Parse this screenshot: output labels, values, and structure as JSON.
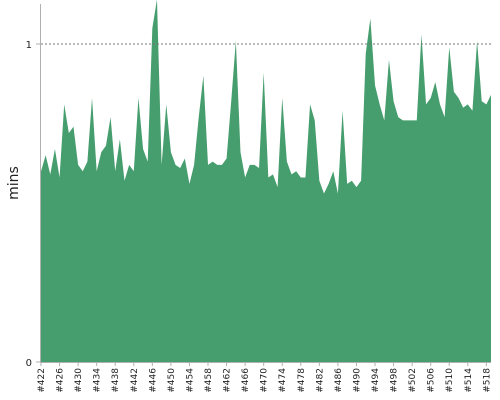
{
  "chart_data": {
    "type": "area",
    "ylabel": "mins",
    "xlabel": "",
    "ylim": [
      0,
      1.13
    ],
    "yticks": [
      {
        "value": 0,
        "label": "0"
      },
      {
        "value": 1,
        "label": "1"
      }
    ],
    "reference_line": {
      "value": 1,
      "style": "dotted"
    },
    "grid": false,
    "legend": "none",
    "fill_color": "#469d6d",
    "x_start": 422,
    "x_end": 519,
    "x_tick_labels": [
      "#422",
      "#426",
      "#430",
      "#434",
      "#438",
      "#442",
      "#446",
      "#450",
      "#454",
      "#458",
      "#462",
      "#466",
      "#470",
      "#474",
      "#478",
      "#482",
      "#486",
      "#490",
      "#494",
      "#498",
      "#502",
      "#506",
      "#510",
      "#514",
      "#518"
    ],
    "values": [
      0.6,
      0.65,
      0.59,
      0.67,
      0.58,
      0.81,
      0.72,
      0.74,
      0.62,
      0.6,
      0.63,
      0.83,
      0.6,
      0.66,
      0.68,
      0.77,
      0.6,
      0.7,
      0.57,
      0.62,
      0.6,
      0.83,
      0.67,
      0.63,
      1.05,
      1.14,
      0.62,
      0.81,
      0.66,
      0.62,
      0.61,
      0.64,
      0.56,
      0.62,
      0.77,
      0.9,
      0.62,
      0.63,
      0.62,
      0.62,
      0.64,
      0.82,
      1.01,
      0.66,
      0.58,
      0.62,
      0.62,
      0.61,
      0.91,
      0.58,
      0.59,
      0.55,
      0.83,
      0.63,
      0.59,
      0.6,
      0.58,
      0.58,
      0.81,
      0.76,
      0.57,
      0.53,
      0.56,
      0.6,
      0.53,
      0.79,
      0.56,
      0.57,
      0.55,
      0.57,
      0.97,
      1.08,
      0.87,
      0.81,
      0.76,
      0.95,
      0.82,
      0.77,
      0.76,
      0.76,
      0.76,
      0.76,
      1.03,
      0.81,
      0.83,
      0.88,
      0.81,
      0.77,
      0.99,
      0.85,
      0.83,
      0.8,
      0.81,
      0.79,
      1.01,
      0.82,
      0.81,
      0.84
    ]
  }
}
